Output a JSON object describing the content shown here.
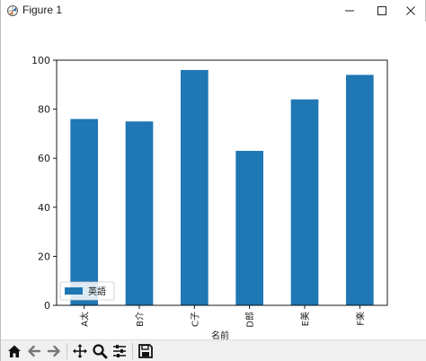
{
  "window": {
    "title": "Figure 1",
    "icons": {
      "app": "figure-icon",
      "minimize": "minimize-icon",
      "maximize": "maximize-icon",
      "close": "close-icon"
    }
  },
  "toolbar": {
    "buttons": [
      {
        "name": "home-button",
        "icon": "home-icon"
      },
      {
        "name": "back-button",
        "icon": "back-arrow-icon"
      },
      {
        "name": "forward-button",
        "icon": "forward-arrow-icon"
      },
      {
        "name": "pan-button",
        "icon": "pan-icon"
      },
      {
        "name": "zoom-button",
        "icon": "zoom-icon"
      },
      {
        "name": "subplots-button",
        "icon": "sliders-icon"
      },
      {
        "name": "save-button",
        "icon": "save-icon"
      }
    ]
  },
  "chart_data": {
    "type": "bar",
    "categories": [
      "A太",
      "B介",
      "C子",
      "D郎",
      "E美",
      "F楽"
    ],
    "series": [
      {
        "name": "英語",
        "values": [
          76,
          75,
          96,
          63,
          84,
          94
        ],
        "color": "#1f77b4"
      }
    ],
    "xlabel": "名前",
    "ylabel": "",
    "ylim": [
      0,
      100
    ],
    "yticks": [
      0,
      20,
      40,
      60,
      80,
      100
    ],
    "grid": false,
    "legend_position": "lower-left"
  }
}
